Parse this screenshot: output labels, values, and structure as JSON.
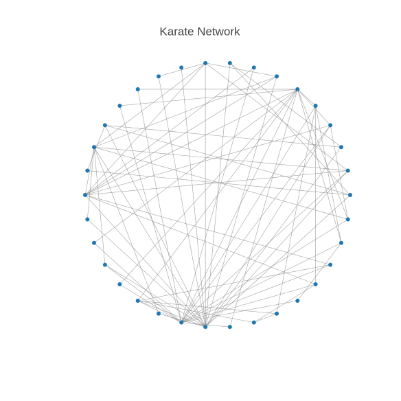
{
  "title": "Karate Network",
  "edges": [
    [
      0,
      1
    ],
    [
      0,
      2
    ],
    [
      0,
      3
    ],
    [
      0,
      4
    ],
    [
      0,
      5
    ],
    [
      0,
      6
    ],
    [
      0,
      7
    ],
    [
      0,
      8
    ],
    [
      0,
      10
    ],
    [
      0,
      11
    ],
    [
      0,
      12
    ],
    [
      0,
      13
    ],
    [
      0,
      17
    ],
    [
      0,
      19
    ],
    [
      0,
      21
    ],
    [
      0,
      31
    ],
    [
      1,
      2
    ],
    [
      1,
      3
    ],
    [
      1,
      7
    ],
    [
      1,
      13
    ],
    [
      1,
      17
    ],
    [
      1,
      19
    ],
    [
      1,
      21
    ],
    [
      1,
      30
    ],
    [
      2,
      3
    ],
    [
      2,
      7
    ],
    [
      2,
      8
    ],
    [
      2,
      9
    ],
    [
      2,
      13
    ],
    [
      2,
      27
    ],
    [
      2,
      28
    ],
    [
      2,
      32
    ],
    [
      3,
      7
    ],
    [
      3,
      12
    ],
    [
      3,
      13
    ],
    [
      4,
      6
    ],
    [
      4,
      10
    ],
    [
      5,
      6
    ],
    [
      5,
      10
    ],
    [
      5,
      16
    ],
    [
      6,
      16
    ],
    [
      8,
      30
    ],
    [
      8,
      32
    ],
    [
      8,
      33
    ],
    [
      9,
      33
    ],
    [
      13,
      33
    ],
    [
      14,
      32
    ],
    [
      14,
      33
    ],
    [
      15,
      32
    ],
    [
      15,
      33
    ],
    [
      18,
      32
    ],
    [
      18,
      33
    ],
    [
      19,
      33
    ],
    [
      20,
      32
    ],
    [
      20,
      33
    ],
    [
      22,
      32
    ],
    [
      22,
      33
    ],
    [
      23,
      25
    ],
    [
      23,
      27
    ],
    [
      23,
      29
    ],
    [
      23,
      32
    ],
    [
      23,
      33
    ],
    [
      24,
      25
    ],
    [
      24,
      27
    ],
    [
      24,
      31
    ],
    [
      25,
      31
    ],
    [
      26,
      29
    ],
    [
      26,
      33
    ],
    [
      27,
      33
    ],
    [
      28,
      31
    ],
    [
      28,
      33
    ],
    [
      29,
      32
    ],
    [
      29,
      33
    ],
    [
      30,
      32
    ],
    [
      30,
      33
    ],
    [
      31,
      32
    ],
    [
      31,
      33
    ],
    [
      32,
      33
    ]
  ]
}
